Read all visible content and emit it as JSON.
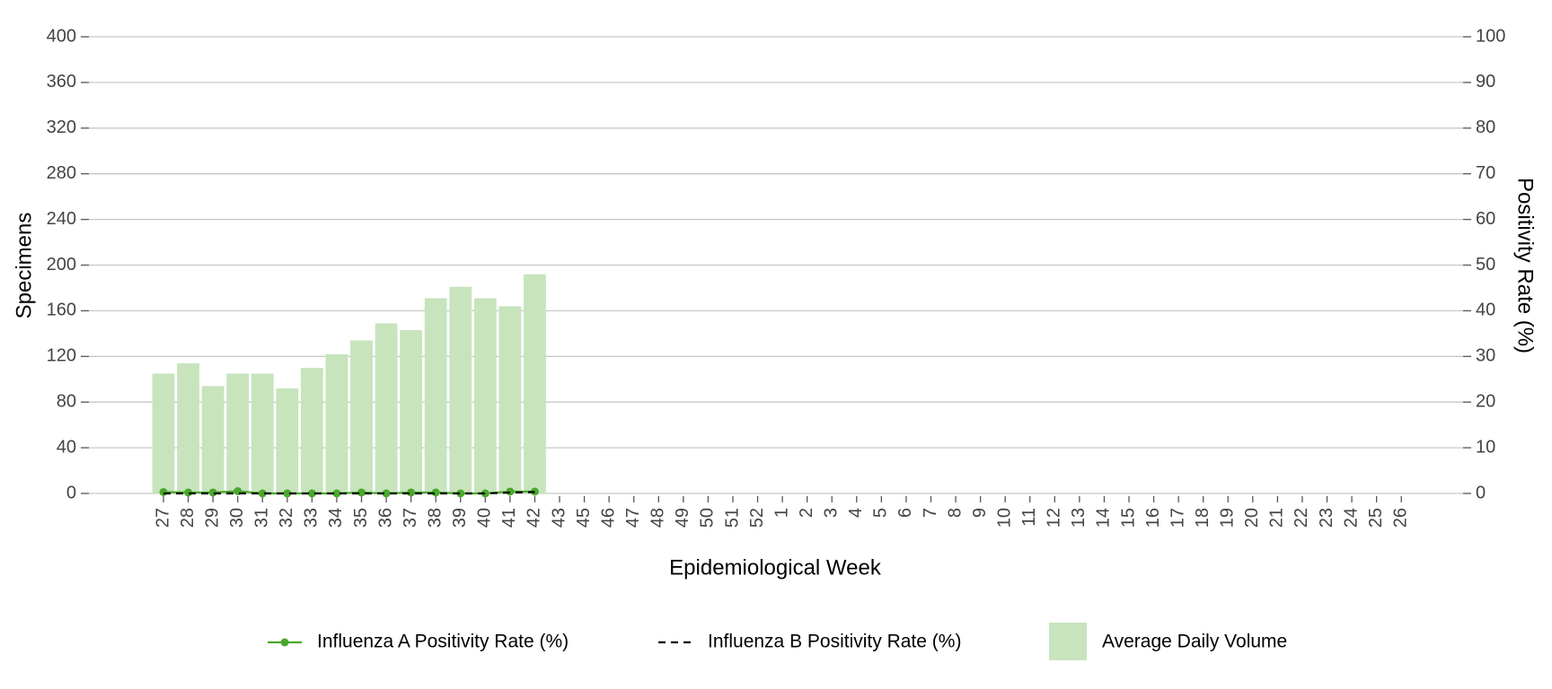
{
  "chart_data": {
    "type": "combo",
    "xlabel": "Epidemiological Week",
    "ylabel": "Specimens",
    "y2label": "Positivity Rate (%)",
    "categories": [
      "27",
      "28",
      "29",
      "30",
      "31",
      "32",
      "33",
      "34",
      "35",
      "36",
      "37",
      "38",
      "39",
      "40",
      "41",
      "42",
      "43",
      "45",
      "46",
      "47",
      "48",
      "49",
      "50",
      "51",
      "52",
      "1",
      "2",
      "3",
      "4",
      "5",
      "6",
      "7",
      "8",
      "9",
      "10",
      "11",
      "12",
      "13",
      "14",
      "15",
      "16",
      "17",
      "18",
      "19",
      "20",
      "21",
      "22",
      "23",
      "24",
      "25",
      "26"
    ],
    "ylim": [
      0,
      400
    ],
    "yticks": [
      0,
      40,
      80,
      120,
      160,
      200,
      240,
      280,
      320,
      360,
      400
    ],
    "y2lim": [
      0,
      100
    ],
    "y2ticks": [
      0,
      10,
      20,
      30,
      40,
      50,
      60,
      70,
      80,
      90,
      100
    ],
    "grid": true,
    "legend": "bottom",
    "series": [
      {
        "name": "Influenza A Positivity Rate (%)",
        "type": "line",
        "axis": "y2",
        "color": "#4aa82a",
        "line_style": "solid",
        "markers": true,
        "values": [
          0.3,
          0.2,
          0.2,
          0.5,
          0,
          0,
          0,
          0,
          0.2,
          0,
          0.2,
          0.2,
          0,
          0,
          0.4,
          0.4,
          null,
          null,
          null,
          null,
          null,
          null,
          null,
          null,
          null,
          null,
          null,
          null,
          null,
          null,
          null,
          null,
          null,
          null,
          null,
          null,
          null,
          null,
          null,
          null,
          null,
          null,
          null,
          null,
          null,
          null,
          null,
          null,
          null,
          null,
          null
        ]
      },
      {
        "name": "Influenza B Positivity Rate (%)",
        "type": "line",
        "axis": "y2",
        "color": "#000000",
        "line_style": "dashed",
        "markers": false,
        "values": [
          0,
          0,
          0,
          0,
          0,
          0,
          0,
          0,
          0,
          0,
          0,
          0,
          0,
          0,
          0.2,
          0.3,
          null,
          null,
          null,
          null,
          null,
          null,
          null,
          null,
          null,
          null,
          null,
          null,
          null,
          null,
          null,
          null,
          null,
          null,
          null,
          null,
          null,
          null,
          null,
          null,
          null,
          null,
          null,
          null,
          null,
          null,
          null,
          null,
          null,
          null,
          null
        ]
      },
      {
        "name": "Average Daily Volume",
        "type": "bar",
        "axis": "y",
        "color": "#c7e4bd",
        "values": [
          105,
          114,
          94,
          105,
          105,
          92,
          110,
          122,
          134,
          149,
          143,
          171,
          181,
          171,
          164,
          192,
          null,
          null,
          null,
          null,
          null,
          null,
          null,
          null,
          null,
          null,
          null,
          null,
          null,
          null,
          null,
          null,
          null,
          null,
          null,
          null,
          null,
          null,
          null,
          null,
          null,
          null,
          null,
          null,
          null,
          null,
          null,
          null,
          null,
          null,
          null
        ]
      }
    ]
  }
}
